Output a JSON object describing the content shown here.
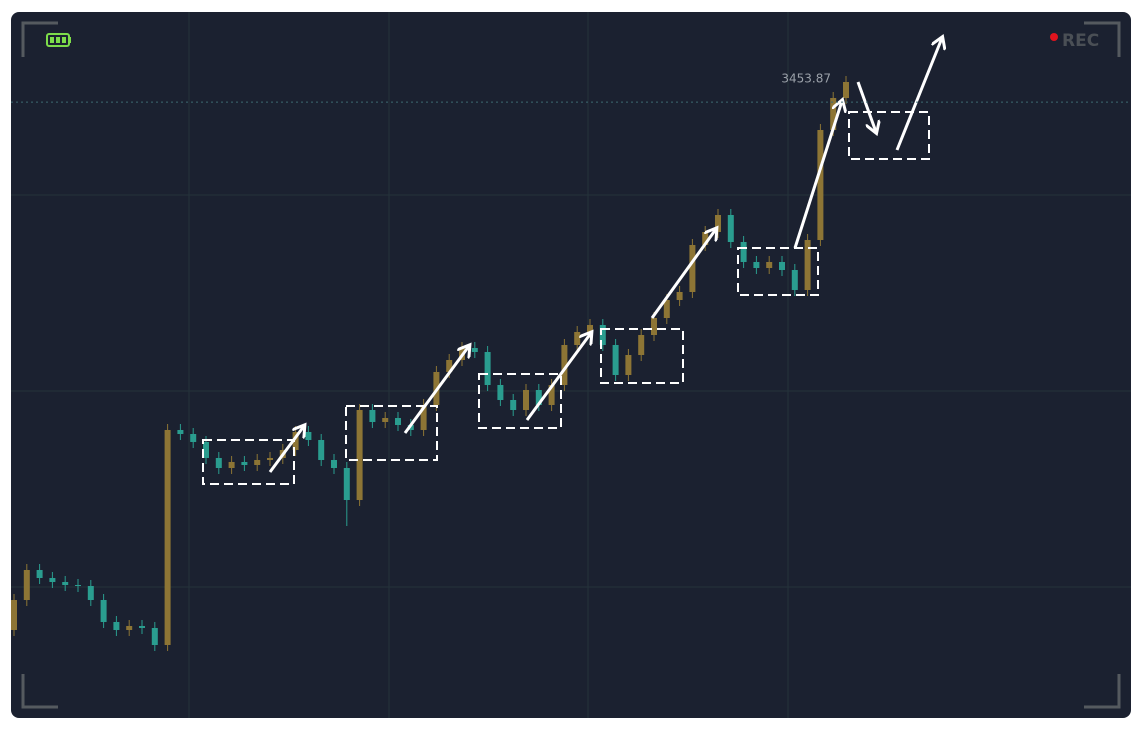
{
  "chart_data": {
    "type": "candlestick",
    "up_color": "#8d7535",
    "down_color": "#2a9d8f",
    "ylim": [
      2838,
      3544
    ],
    "open": [
      2926,
      2956,
      2986,
      2978,
      2974,
      2971,
      2970,
      2956,
      2934,
      2926,
      2930,
      2928,
      2911,
      3126,
      3122,
      3114,
      3098,
      3088,
      3094,
      3091,
      3096,
      3098,
      3106,
      3124,
      3116,
      3096,
      3088,
      3056,
      3146,
      3134,
      3138,
      3131,
      3126,
      3151,
      3184,
      3196,
      3208,
      3204,
      3171,
      3156,
      3146,
      3166,
      3151,
      3171,
      3211,
      3224,
      3231,
      3211,
      3181,
      3201,
      3221,
      3238,
      3256,
      3264,
      3311,
      3324,
      3341,
      3314,
      3294,
      3288,
      3294,
      3286,
      3266,
      3316,
      3426,
      3458
    ],
    "high": [
      2962,
      2992,
      2992,
      2984,
      2980,
      2977,
      2976,
      2962,
      2940,
      2936,
      2936,
      2934,
      3132,
      3132,
      3128,
      3120,
      3104,
      3100,
      3100,
      3102,
      3104,
      3112,
      3130,
      3130,
      3122,
      3102,
      3094,
      3152,
      3152,
      3144,
      3144,
      3137,
      3157,
      3190,
      3202,
      3214,
      3214,
      3210,
      3177,
      3162,
      3172,
      3172,
      3177,
      3217,
      3230,
      3237,
      3237,
      3217,
      3207,
      3227,
      3244,
      3262,
      3270,
      3317,
      3330,
      3347,
      3347,
      3320,
      3300,
      3300,
      3300,
      3292,
      3322,
      3432,
      3464,
      3480
    ],
    "low": [
      2920,
      2950,
      2972,
      2968,
      2965,
      2964,
      2950,
      2928,
      2920,
      2920,
      2922,
      2905,
      2905,
      3116,
      3108,
      3092,
      3082,
      3082,
      3085,
      3085,
      3090,
      3092,
      3100,
      3110,
      3090,
      3082,
      3030,
      3050,
      3128,
      3128,
      3125,
      3120,
      3120,
      3145,
      3178,
      3190,
      3198,
      3165,
      3150,
      3140,
      3140,
      3145,
      3145,
      3165,
      3205,
      3218,
      3205,
      3175,
      3175,
      3195,
      3215,
      3232,
      3250,
      3258,
      3305,
      3318,
      3308,
      3288,
      3282,
      3282,
      3280,
      3260,
      3260,
      3310,
      3420,
      3452
    ],
    "close": [
      2956,
      2986,
      2978,
      2974,
      2971,
      2970,
      2956,
      2934,
      2926,
      2930,
      2928,
      2911,
      3126,
      3122,
      3114,
      3098,
      3088,
      3094,
      3091,
      3096,
      3098,
      3106,
      3124,
      3116,
      3096,
      3088,
      3056,
      3146,
      3134,
      3138,
      3131,
      3126,
      3151,
      3184,
      3196,
      3208,
      3204,
      3171,
      3156,
      3146,
      3166,
      3151,
      3171,
      3211,
      3224,
      3231,
      3211,
      3181,
      3201,
      3221,
      3238,
      3256,
      3264,
      3311,
      3324,
      3341,
      3314,
      3294,
      3288,
      3294,
      3286,
      3266,
      3316,
      3426,
      3458,
      3474
    ],
    "last_price": 3453.87,
    "recording_label": "REC"
  }
}
